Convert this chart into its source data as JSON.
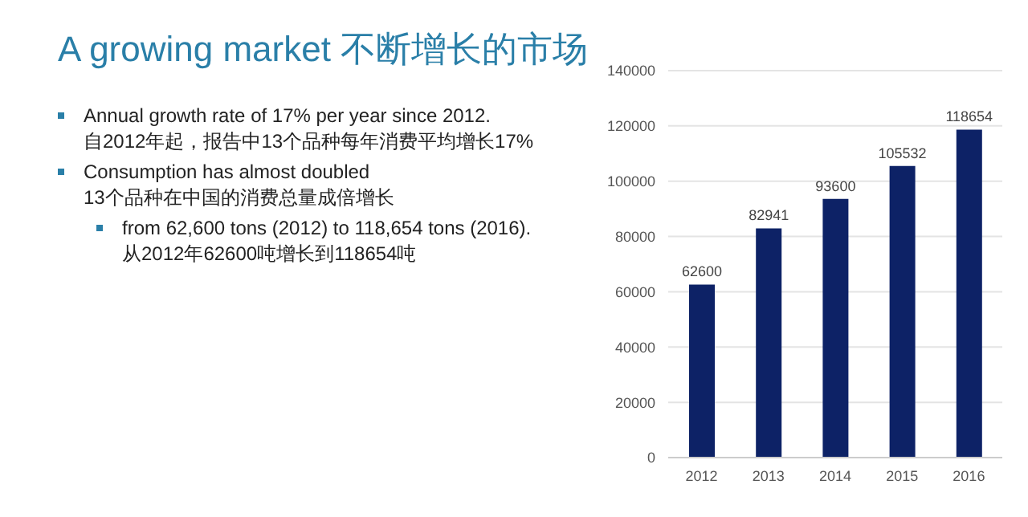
{
  "chart_data": {
    "type": "bar",
    "title": "A growing market 不断增长的市场",
    "annotations": [
      "Annual growth rate of 17% per year since 2012.\n自2012年起，报告中13个品种每年消费平均增长17%",
      "Consumption has almost doubled\n13个品种在中国的消费总量成倍增长",
      "from 62,600 tons (2012) to 118,654 tons (2016).\n从2012年62600吨增长到118654吨"
    ],
    "categories": [
      "2012",
      "2013",
      "2014",
      "2015",
      "2016"
    ],
    "values": [
      62600,
      82941,
      93600,
      105532,
      118654
    ],
    "color": "#0d2266",
    "ylim": [
      0,
      140000
    ],
    "yticks": [
      0,
      20000,
      40000,
      60000,
      80000,
      100000,
      120000,
      140000
    ],
    "grid": "y",
    "data_labels": true
  }
}
